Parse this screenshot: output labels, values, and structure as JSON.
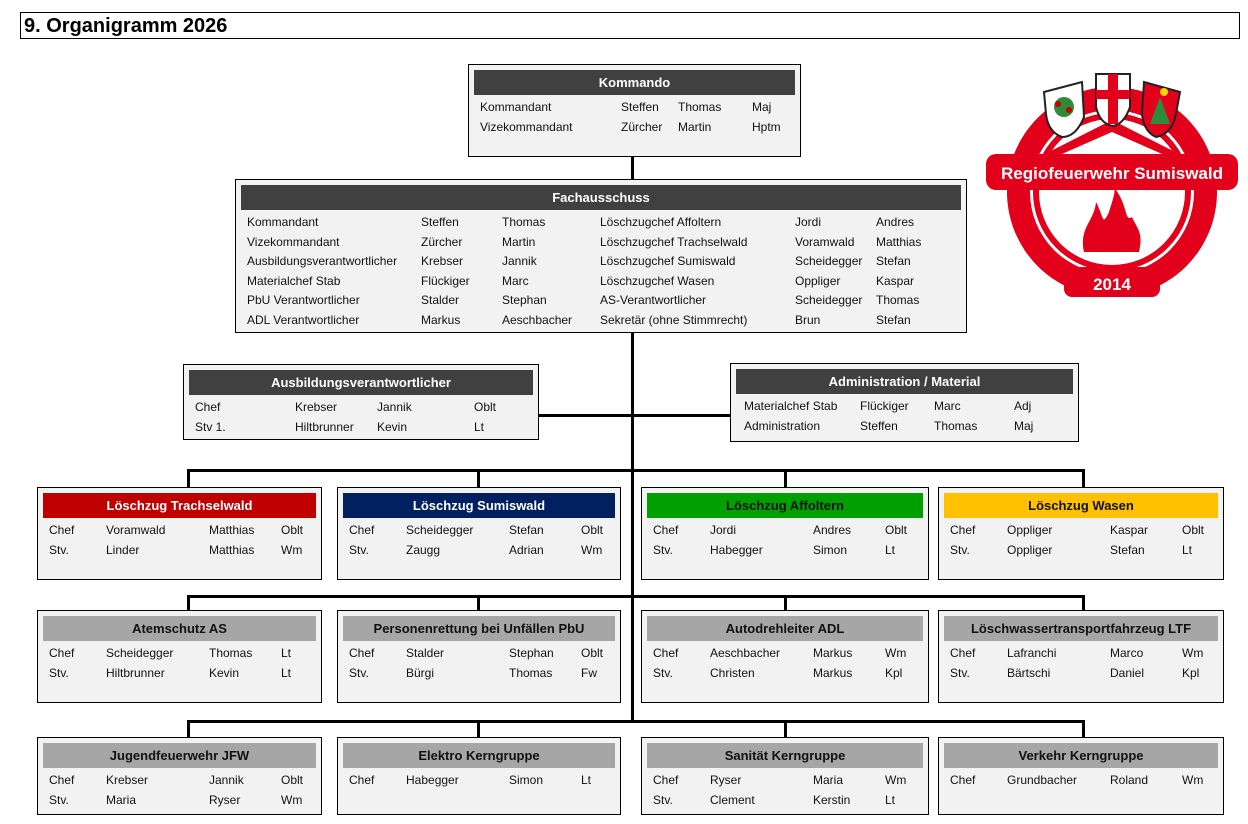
{
  "title": "9. Organigramm 2026",
  "colors": {
    "dark": "#404040",
    "red": "#c00000",
    "navy": "#002060",
    "green": "#00a000",
    "yellow": "#ffc000",
    "gray": "#a6a6a6"
  },
  "logo": {
    "text": "Regiofeuerwehr Sumiswald",
    "year": "2014"
  },
  "boxes": [
    {
      "id": "kommando",
      "title": "Kommando",
      "color": "dark",
      "rows": [
        [
          "Kommandant",
          "Steffen",
          "Thomas",
          "Maj"
        ],
        [
          "Vizekommandant",
          "Zürcher",
          "Martin",
          "Hptm"
        ]
      ]
    },
    {
      "id": "fachausschuss",
      "title": "Fachausschuss",
      "color": "dark",
      "rows": [
        [
          "Kommandant",
          "Steffen",
          "Thomas",
          "Löschzugchef Affoltern",
          "Jordi",
          "Andres"
        ],
        [
          "Vizekommandant",
          "Zürcher",
          "Martin",
          "Löschzugchef Trachselwald",
          "Voramwald",
          "Matthias"
        ],
        [
          "Ausbildungsverantwortlicher",
          "Krebser",
          "Jannik",
          "Löschzugchef Sumiswald",
          "Scheidegger",
          "Stefan"
        ],
        [
          "Materialchef Stab",
          "Flückiger",
          "Marc",
          "Löschzugchef Wasen",
          "Oppliger",
          "Kaspar"
        ],
        [
          "PbU Verantwortlicher",
          "Stalder",
          "Stephan",
          "AS-Verantwortlicher",
          "Scheidegger",
          "Thomas"
        ],
        [
          "ADL Verantwortlicher",
          "Markus",
          "Aeschbacher",
          "Sekretär (ohne Stimmrecht)",
          "Brun",
          "Stefan"
        ]
      ]
    },
    {
      "id": "ausbildung",
      "title": "Ausbildungsverantwortlicher",
      "color": "dark",
      "rows": [
        [
          "Chef",
          "Krebser",
          "Jannik",
          "Oblt"
        ],
        [
          "Stv 1.",
          "Hiltbrunner",
          "Kevin",
          "Lt"
        ]
      ]
    },
    {
      "id": "administration",
      "title": "Administration / Material",
      "color": "dark",
      "rows": [
        [
          "Materialchef Stab",
          "Flückiger",
          "Marc",
          "Adj"
        ],
        [
          "Administration",
          "Steffen",
          "Thomas",
          "Maj"
        ]
      ]
    },
    {
      "id": "lz-trachselwald",
      "title": "Löschzug Trachselwald",
      "color": "red",
      "rows": [
        [
          "Chef",
          "Voramwald",
          "Matthias",
          "Oblt"
        ],
        [
          "Stv.",
          "Linder",
          "Matthias",
          "Wm"
        ]
      ]
    },
    {
      "id": "lz-sumiswald",
      "title": "Löschzug Sumiswald",
      "color": "navy",
      "rows": [
        [
          "Chef",
          "Scheidegger",
          "Stefan",
          "Oblt"
        ],
        [
          "Stv.",
          "Zaugg",
          "Adrian",
          "Wm"
        ]
      ]
    },
    {
      "id": "lz-affoltern",
      "title": "Löschzug Affoltern",
      "color": "green",
      "rows": [
        [
          "Chef",
          "Jordi",
          "Andres",
          "Oblt"
        ],
        [
          "Stv.",
          "Habegger",
          "Simon",
          "Lt"
        ]
      ]
    },
    {
      "id": "lz-wasen",
      "title": "Löschzug Wasen",
      "color": "yellow",
      "rows": [
        [
          "Chef",
          "Oppliger",
          "Kaspar",
          "Oblt"
        ],
        [
          "Stv.",
          "Oppliger",
          "Stefan",
          "Lt"
        ]
      ]
    },
    {
      "id": "atemschutz",
      "title": "Atemschutz AS",
      "color": "gray",
      "rows": [
        [
          "Chef",
          "Scheidegger",
          "Thomas",
          "Lt"
        ],
        [
          "Stv.",
          "Hiltbrunner",
          "Kevin",
          "Lt"
        ]
      ]
    },
    {
      "id": "pbu",
      "title": "Personenrettung bei Unfällen PbU",
      "color": "gray",
      "rows": [
        [
          "Chef",
          "Stalder",
          "Stephan",
          "Oblt"
        ],
        [
          "Stv.",
          "Bürgi",
          "Thomas",
          "Fw"
        ]
      ]
    },
    {
      "id": "adl",
      "title": "Autodrehleiter ADL",
      "color": "gray",
      "rows": [
        [
          "Chef",
          "Aeschbacher",
          "Markus",
          "Wm"
        ],
        [
          "Stv.",
          "Christen",
          "Markus",
          "Kpl"
        ]
      ]
    },
    {
      "id": "ltf",
      "title": "Löschwassertransportfahrzeug LTF",
      "color": "gray",
      "rows": [
        [
          "Chef",
          "Lafranchi",
          "Marco",
          "Wm"
        ],
        [
          "Stv.",
          "Bärtschi",
          "Daniel",
          "Kpl"
        ]
      ]
    },
    {
      "id": "jfw",
      "title": "Jugendfeuerwehr JFW",
      "color": "gray",
      "rows": [
        [
          "Chef",
          "Krebser",
          "Jannik",
          "Oblt"
        ],
        [
          "Stv.",
          "Maria",
          "Ryser",
          "Wm"
        ]
      ]
    },
    {
      "id": "elektro",
      "title": "Elektro Kerngruppe",
      "color": "gray",
      "rows": [
        [
          "Chef",
          "Habegger",
          "Simon",
          "Lt"
        ]
      ]
    },
    {
      "id": "sanitaet",
      "title": "Sanität Kerngruppe",
      "color": "gray",
      "rows": [
        [
          "Chef",
          "Ryser",
          "Maria",
          "Wm"
        ],
        [
          "Stv.",
          "Clement",
          "Kerstin",
          "Lt"
        ]
      ]
    },
    {
      "id": "verkehr",
      "title": "Verkehr Kerngruppe",
      "color": "gray",
      "rows": [
        [
          "Chef",
          "Grundbacher",
          "Roland",
          "Wm"
        ]
      ]
    }
  ]
}
